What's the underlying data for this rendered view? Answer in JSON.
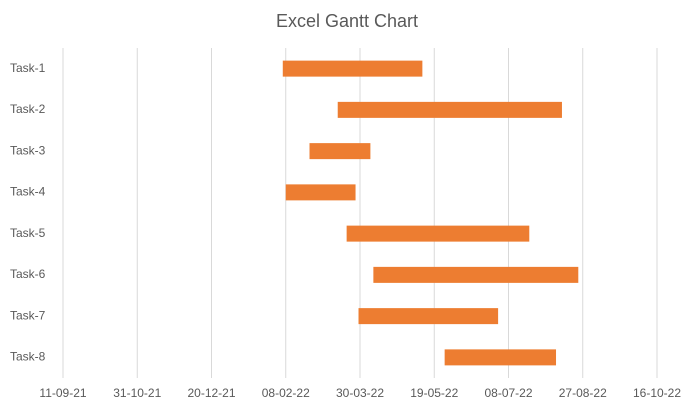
{
  "chart_data": {
    "type": "gantt",
    "title": "Excel Gantt Chart",
    "categories": [
      "Task-1",
      "Task-2",
      "Task-3",
      "Task-4",
      "Task-5",
      "Task-6",
      "Task-7",
      "Task-8"
    ],
    "start": [
      44598,
      44635,
      44616,
      44600,
      44641,
      44659,
      44649,
      44707
    ],
    "duration": [
      94,
      151,
      41,
      47,
      123,
      138,
      94,
      75
    ],
    "color": "#ed7d31",
    "xlim": [
      44450,
      44850
    ],
    "xticks": [
      {
        "value": 44450,
        "label": "11-09-21"
      },
      {
        "value": 44500,
        "label": "31-10-21"
      },
      {
        "value": 44550,
        "label": "20-12-21"
      },
      {
        "value": 44600,
        "label": "08-02-22"
      },
      {
        "value": 44650,
        "label": "30-03-22"
      },
      {
        "value": 44700,
        "label": "19-05-22"
      },
      {
        "value": 44750,
        "label": "08-07-22"
      },
      {
        "value": 44800,
        "label": "27-08-22"
      },
      {
        "value": 44850,
        "label": "16-10-22"
      }
    ],
    "grid": true
  }
}
